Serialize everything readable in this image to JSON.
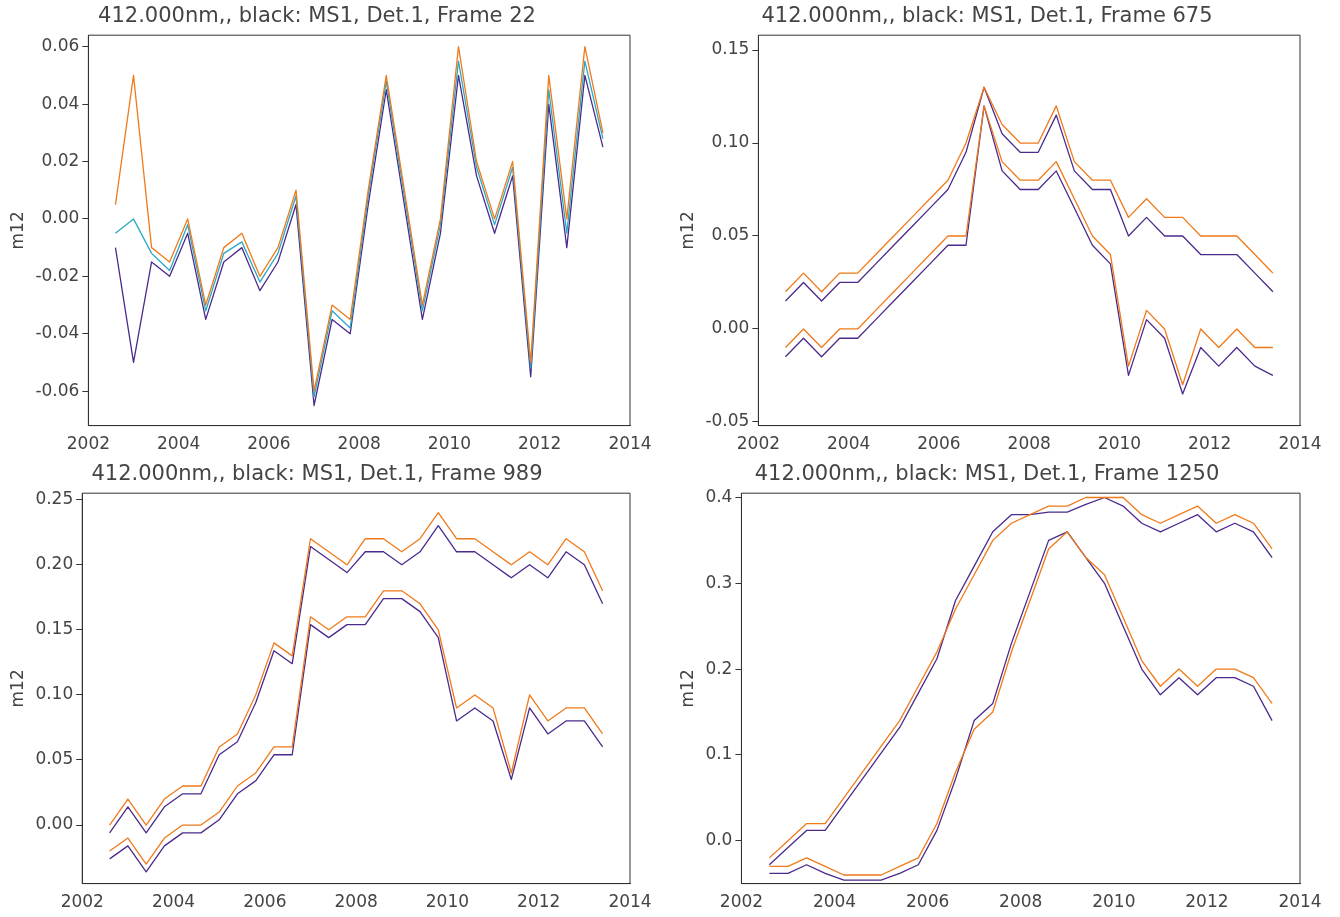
{
  "chart_data": [
    {
      "type": "line",
      "title": "412.000nm,, black: MS1, Det.1, Frame 22",
      "ylabel": "m12",
      "marker": "none",
      "x": [
        2002.6,
        2003.0,
        2003.4,
        2003.8,
        2004.2,
        2004.6,
        2005.0,
        2005.4,
        2005.8,
        2006.2,
        2006.6,
        2007.0,
        2007.4,
        2007.8,
        2008.2,
        2008.6,
        2009.0,
        2009.4,
        2009.8,
        2010.2,
        2010.6,
        2011.0,
        2011.4,
        2011.8,
        2012.2,
        2012.6,
        2013.0,
        2013.4
      ],
      "xlim": [
        2002,
        2014
      ],
      "xticks": [
        2002,
        2004,
        2006,
        2008,
        2010,
        2012,
        2014
      ],
      "ylim": [
        -0.072,
        0.064
      ],
      "yticks": [
        {
          "value": -0.06,
          "label": "-0.06"
        },
        {
          "value": -0.04,
          "label": "-0.04"
        },
        {
          "value": -0.02,
          "label": "-0.02"
        },
        {
          "value": 0,
          "label": "0.00"
        },
        {
          "value": 0.02,
          "label": "0.02"
        },
        {
          "value": 0.04,
          "label": "0.04"
        },
        {
          "value": 0.06,
          "label": "0.06"
        }
      ],
      "series": [
        {
          "color": "#4b2a8c",
          "values": [
            -0.01,
            -0.05,
            -0.015,
            -0.02,
            -0.005,
            -0.035,
            -0.015,
            -0.01,
            -0.025,
            -0.015,
            0.005,
            -0.065,
            -0.035,
            -0.04,
            0.005,
            0.045,
            0.005,
            -0.035,
            -0.005,
            0.05,
            0.015,
            -0.005,
            0.015,
            -0.055,
            0.04,
            -0.01,
            0.05,
            0.025
          ]
        },
        {
          "color": "#2aa9c4",
          "values": [
            -0.005,
            0.0,
            -0.012,
            -0.018,
            -0.002,
            -0.032,
            -0.012,
            -0.008,
            -0.022,
            -0.012,
            0.008,
            -0.062,
            -0.032,
            -0.038,
            0.008,
            0.048,
            0.008,
            -0.032,
            -0.002,
            0.055,
            0.018,
            -0.002,
            0.018,
            -0.052,
            0.045,
            -0.005,
            0.055,
            0.028
          ]
        },
        {
          "color": "#f07a1a",
          "values": [
            0.005,
            0.05,
            -0.01,
            -0.015,
            0.0,
            -0.03,
            -0.01,
            -0.005,
            -0.02,
            -0.01,
            0.01,
            -0.06,
            -0.03,
            -0.035,
            0.01,
            0.05,
            0.01,
            -0.03,
            0.0,
            0.06,
            0.02,
            0.0,
            0.02,
            -0.05,
            0.05,
            0.0,
            0.06,
            0.03
          ]
        }
      ]
    },
    {
      "type": "line",
      "title": "412.000nm,, black: MS1, Det.1, Frame 675",
      "ylabel": "m12",
      "marker": "none",
      "x": [
        2002.6,
        2003.0,
        2003.4,
        2003.8,
        2004.2,
        2004.6,
        2005.0,
        2005.4,
        2005.8,
        2006.2,
        2006.6,
        2007.0,
        2007.4,
        2007.8,
        2008.2,
        2008.6,
        2009.0,
        2009.4,
        2009.8,
        2010.2,
        2010.6,
        2011.0,
        2011.4,
        2011.8,
        2012.2,
        2012.6,
        2013.0,
        2013.4
      ],
      "xlim": [
        2002,
        2014
      ],
      "xticks": [
        2002,
        2004,
        2006,
        2008,
        2010,
        2012,
        2014
      ],
      "ylim": [
        -0.052,
        0.158
      ],
      "yticks": [
        {
          "value": -0.05,
          "label": "-0.05"
        },
        {
          "value": 0,
          "label": "0.00"
        },
        {
          "value": 0.05,
          "label": "0.05"
        },
        {
          "value": 0.1,
          "label": "0.10"
        },
        {
          "value": 0.15,
          "label": "0.15"
        }
      ],
      "series": [
        {
          "color": "#4b2a8c",
          "values": [
            0.015,
            0.025,
            0.015,
            0.025,
            0.025,
            0.035,
            0.045,
            0.055,
            0.065,
            0.075,
            0.095,
            0.13,
            0.105,
            0.095,
            0.095,
            0.115,
            0.085,
            0.075,
            0.075,
            0.05,
            0.06,
            0.05,
            0.05,
            0.04,
            0.04,
            0.04,
            0.03,
            0.02
          ]
        },
        {
          "color": "#4b2a8c",
          "values": [
            -0.015,
            -0.005,
            -0.015,
            -0.005,
            -0.005,
            0.005,
            0.015,
            0.025,
            0.035,
            0.045,
            0.045,
            0.12,
            0.085,
            0.075,
            0.075,
            0.085,
            0.065,
            0.045,
            0.035,
            -0.025,
            0.005,
            -0.005,
            -0.035,
            -0.01,
            -0.02,
            -0.01,
            -0.02,
            -0.025
          ]
        },
        {
          "color": "#f07a1a",
          "values": [
            0.02,
            0.03,
            0.02,
            0.03,
            0.03,
            0.04,
            0.05,
            0.06,
            0.07,
            0.08,
            0.1,
            0.13,
            0.11,
            0.1,
            0.1,
            0.12,
            0.09,
            0.08,
            0.08,
            0.06,
            0.07,
            0.06,
            0.06,
            0.05,
            0.05,
            0.05,
            0.04,
            0.03
          ]
        },
        {
          "color": "#f07a1a",
          "values": [
            -0.01,
            0.0,
            -0.01,
            0.0,
            0.0,
            0.01,
            0.02,
            0.03,
            0.04,
            0.05,
            0.05,
            0.12,
            0.09,
            0.08,
            0.08,
            0.09,
            0.07,
            0.05,
            0.04,
            -0.02,
            0.01,
            0.0,
            -0.03,
            0.0,
            -0.01,
            0.0,
            -0.01,
            -0.01
          ]
        }
      ]
    },
    {
      "type": "line",
      "title": "412.000nm,, black: MS1, Det.1, Frame 989",
      "ylabel": "m12",
      "marker": "none",
      "x": [
        2002.6,
        2003.0,
        2003.4,
        2003.8,
        2004.2,
        2004.6,
        2005.0,
        2005.4,
        2005.8,
        2006.2,
        2006.6,
        2007.0,
        2007.4,
        2007.8,
        2008.2,
        2008.6,
        2009.0,
        2009.4,
        2009.8,
        2010.2,
        2010.6,
        2011.0,
        2011.4,
        2011.8,
        2012.2,
        2012.6,
        2013.0,
        2013.4
      ],
      "xlim": [
        2002,
        2014
      ],
      "xticks": [
        2002,
        2004,
        2006,
        2008,
        2010,
        2012,
        2014
      ],
      "ylim": [
        -0.045,
        0.255
      ],
      "yticks": [
        {
          "value": 0,
          "label": "0.00"
        },
        {
          "value": 0.05,
          "label": "0.05"
        },
        {
          "value": 0.1,
          "label": "0.10"
        },
        {
          "value": 0.15,
          "label": "0.15"
        },
        {
          "value": 0.2,
          "label": "0.20"
        },
        {
          "value": 0.25,
          "label": "0.25"
        }
      ],
      "series": [
        {
          "color": "#4b2a8c",
          "values": [
            -0.006,
            0.014,
            -0.006,
            0.014,
            0.024,
            0.024,
            0.054,
            0.064,
            0.094,
            0.134,
            0.124,
            0.214,
            0.204,
            0.194,
            0.21,
            0.21,
            0.2,
            0.21,
            0.23,
            0.21,
            0.21,
            0.2,
            0.19,
            0.2,
            0.19,
            0.21,
            0.2,
            0.17
          ]
        },
        {
          "color": "#4b2a8c",
          "values": [
            -0.026,
            -0.016,
            -0.036,
            -0.016,
            -0.006,
            -0.006,
            0.004,
            0.024,
            0.034,
            0.054,
            0.054,
            0.154,
            0.144,
            0.154,
            0.154,
            0.174,
            0.174,
            0.164,
            0.144,
            0.08,
            0.09,
            0.08,
            0.035,
            0.09,
            0.07,
            0.08,
            0.08,
            0.06
          ]
        },
        {
          "color": "#f07a1a",
          "values": [
            0.0,
            0.02,
            0.0,
            0.02,
            0.03,
            0.03,
            0.06,
            0.07,
            0.1,
            0.14,
            0.13,
            0.22,
            0.21,
            0.2,
            0.22,
            0.22,
            0.21,
            0.22,
            0.24,
            0.22,
            0.22,
            0.21,
            0.2,
            0.21,
            0.2,
            0.22,
            0.21,
            0.18
          ]
        },
        {
          "color": "#f07a1a",
          "values": [
            -0.02,
            -0.01,
            -0.03,
            -0.01,
            0.0,
            0.0,
            0.01,
            0.03,
            0.04,
            0.06,
            0.06,
            0.16,
            0.15,
            0.16,
            0.16,
            0.18,
            0.18,
            0.17,
            0.15,
            0.09,
            0.1,
            0.09,
            0.04,
            0.1,
            0.08,
            0.09,
            0.09,
            0.07
          ]
        }
      ]
    },
    {
      "type": "line",
      "title": "412.000nm,, black: MS1, Det.1, Frame 1250",
      "ylabel": "m12",
      "marker": "none",
      "x": [
        2002.6,
        2003.0,
        2003.4,
        2003.8,
        2004.2,
        2004.6,
        2005.0,
        2005.4,
        2005.8,
        2006.2,
        2006.6,
        2007.0,
        2007.4,
        2007.8,
        2008.2,
        2008.6,
        2009.0,
        2009.4,
        2009.8,
        2010.2,
        2010.6,
        2011.0,
        2011.4,
        2011.8,
        2012.2,
        2012.6,
        2013.0,
        2013.4
      ],
      "xlim": [
        2002,
        2014
      ],
      "xticks": [
        2002,
        2004,
        2006,
        2008,
        2010,
        2012,
        2014
      ],
      "ylim": [
        -0.05,
        0.405
      ],
      "yticks": [
        {
          "value": 0,
          "label": "0.0"
        },
        {
          "value": 0.1,
          "label": "0.1"
        },
        {
          "value": 0.2,
          "label": "0.2"
        },
        {
          "value": 0.3,
          "label": "0.3"
        },
        {
          "value": 0.4,
          "label": "0.4"
        }
      ],
      "series": [
        {
          "color": "#4b2a8c",
          "values": [
            -0.028,
            -0.008,
            0.012,
            0.012,
            0.042,
            0.072,
            0.102,
            0.132,
            0.172,
            0.212,
            0.28,
            0.32,
            0.36,
            0.38,
            0.38,
            0.383,
            0.383,
            0.392,
            0.4,
            0.39,
            0.37,
            0.36,
            0.37,
            0.38,
            0.36,
            0.37,
            0.36,
            0.33
          ]
        },
        {
          "color": "#4b2a8c",
          "values": [
            -0.038,
            -0.038,
            -0.028,
            -0.038,
            -0.046,
            -0.046,
            -0.046,
            -0.038,
            -0.028,
            0.012,
            0.072,
            0.14,
            0.16,
            0.23,
            0.29,
            0.35,
            0.36,
            0.33,
            0.3,
            0.25,
            0.2,
            0.17,
            0.19,
            0.17,
            0.19,
            0.19,
            0.18,
            0.14
          ]
        },
        {
          "color": "#f07a1a",
          "values": [
            -0.02,
            0.0,
            0.02,
            0.02,
            0.05,
            0.08,
            0.11,
            0.14,
            0.18,
            0.22,
            0.27,
            0.31,
            0.35,
            0.37,
            0.38,
            0.39,
            0.39,
            0.4,
            0.4,
            0.4,
            0.38,
            0.37,
            0.38,
            0.39,
            0.37,
            0.38,
            0.37,
            0.34
          ]
        },
        {
          "color": "#f07a1a",
          "values": [
            -0.03,
            -0.03,
            -0.02,
            -0.03,
            -0.04,
            -0.04,
            -0.04,
            -0.03,
            -0.02,
            0.02,
            0.08,
            0.13,
            0.15,
            0.22,
            0.28,
            0.34,
            0.36,
            0.33,
            0.31,
            0.26,
            0.21,
            0.18,
            0.2,
            0.18,
            0.2,
            0.2,
            0.19,
            0.16
          ]
        }
      ]
    }
  ]
}
